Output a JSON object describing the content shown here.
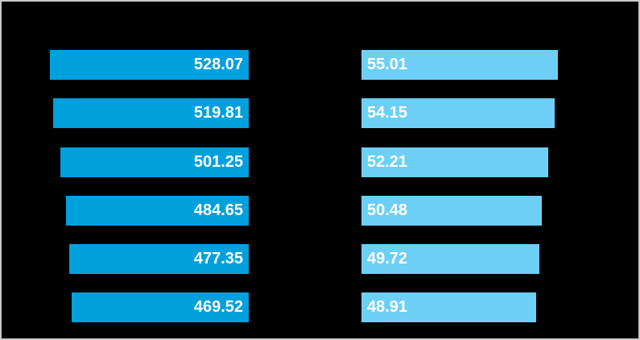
{
  "canvas": {
    "background_color": "#000000",
    "border_color": "#c8c8c8"
  },
  "chart_data": {
    "type": "bar",
    "orientation": "horizontal",
    "rows": 6,
    "grid": false,
    "legend": false,
    "axes_visible": false,
    "category_labels_visible": false,
    "value_labels_position": "inside",
    "value_label_color": "#ffffff",
    "series": [
      {
        "name": "left-series",
        "bar_color": "#00a0dc",
        "bars_anchored": "right",
        "label_align": "right",
        "values": [
          528.07,
          519.81,
          501.25,
          484.65,
          477.35,
          469.52
        ],
        "labels": [
          "528.07",
          "519.81",
          "501.25",
          "484.65",
          "477.35",
          "469.52"
        ]
      },
      {
        "name": "right-series",
        "bar_color": "#6dcff6",
        "bars_anchored": "left",
        "label_align": "left",
        "values": [
          55.01,
          54.15,
          52.21,
          50.48,
          49.72,
          48.91
        ],
        "labels": [
          "55.01",
          "54.15",
          "52.21",
          "50.48",
          "49.72",
          "48.91"
        ]
      }
    ]
  }
}
